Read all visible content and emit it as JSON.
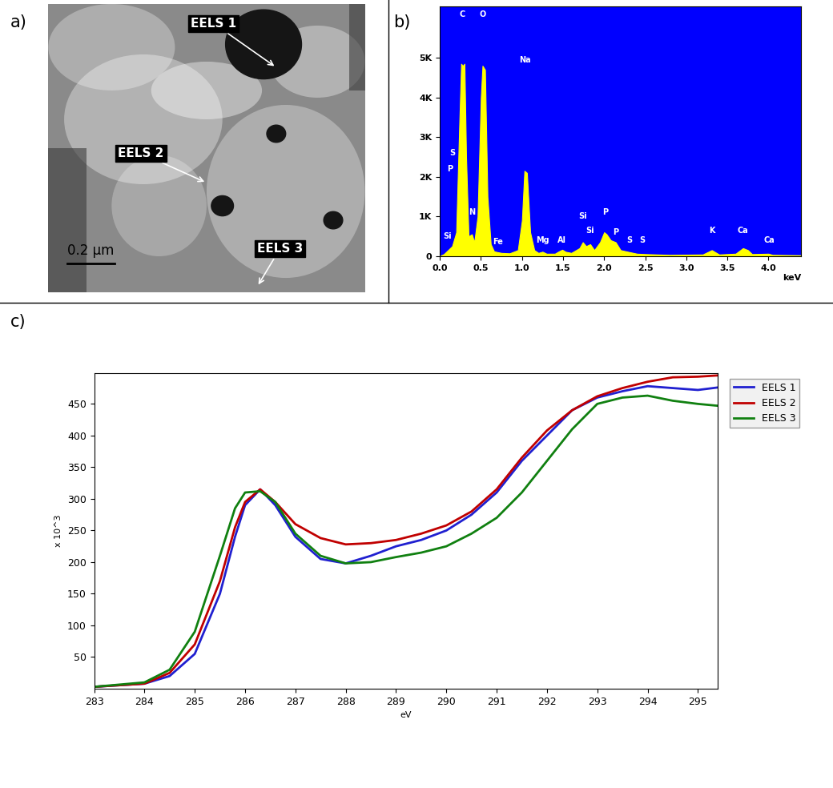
{
  "panel_labels": [
    "a)",
    "b)",
    "c)"
  ],
  "image": {
    "annotations": [
      "EELS 1",
      "EELS 2",
      "EELS 3"
    ],
    "scale_bar": "0.2 µm"
  },
  "chart_data": [
    {
      "type": "area",
      "color": "#ffff00",
      "x_label": "keV",
      "x": [
        0.0,
        0.05,
        0.1,
        0.15,
        0.2,
        0.24,
        0.26,
        0.28,
        0.3,
        0.32,
        0.35,
        0.39,
        0.42,
        0.46,
        0.5,
        0.52,
        0.55,
        0.58,
        0.62,
        0.66,
        0.7,
        0.75,
        0.85,
        0.95,
        1.0,
        1.03,
        1.06,
        1.1,
        1.15,
        1.2,
        1.25,
        1.3,
        1.4,
        1.45,
        1.49,
        1.53,
        1.6,
        1.7,
        1.74,
        1.78,
        1.83,
        1.88,
        1.95,
        2.0,
        2.03,
        2.08,
        2.14,
        2.2,
        2.31,
        2.4,
        2.5,
        2.8,
        3.2,
        3.31,
        3.4,
        3.6,
        3.69,
        3.75,
        3.8,
        4.0,
        4.05,
        4.4
      ],
      "values": [
        0,
        50,
        150,
        250,
        600,
        3500,
        4850,
        4800,
        4850,
        2500,
        500,
        550,
        350,
        1000,
        4000,
        4800,
        4700,
        1500,
        300,
        120,
        100,
        80,
        70,
        150,
        900,
        2150,
        2100,
        600,
        150,
        80,
        110,
        60,
        60,
        120,
        160,
        110,
        80,
        200,
        350,
        250,
        300,
        150,
        350,
        600,
        550,
        400,
        350,
        150,
        100,
        60,
        50,
        30,
        40,
        150,
        40,
        60,
        200,
        150,
        50,
        60,
        30,
        20
      ],
      "xlim": [
        0,
        4.4
      ],
      "xticks": [
        0.0,
        0.5,
        1.0,
        1.5,
        2.0,
        2.5,
        3.0,
        3.5,
        4.0
      ],
      "ylim": [
        0,
        6300
      ],
      "yticks": [
        0,
        {
          "value": 1000,
          "label": "1K"
        },
        {
          "value": 2000,
          "label": "2K"
        },
        {
          "value": 3000,
          "label": "3K"
        },
        {
          "value": 4000,
          "label": "4K"
        },
        {
          "value": 5000,
          "label": "5K"
        }
      ],
      "annotations": [
        {
          "text": "Si",
          "x": 0.092,
          "y": 400
        },
        {
          "text": "P",
          "x": 0.12,
          "y": 2100
        },
        {
          "text": "S",
          "x": 0.149,
          "y": 2500
        },
        {
          "text": "C",
          "x": 0.277,
          "y": 6000
        },
        {
          "text": "N",
          "x": 0.392,
          "y": 1000
        },
        {
          "text": "O",
          "x": 0.525,
          "y": 6000
        },
        {
          "text": "Fe",
          "x": 0.705,
          "y": 250
        },
        {
          "text": "Na",
          "x": 1.041,
          "y": 4850
        },
        {
          "text": "Mg",
          "x": 1.254,
          "y": 300
        },
        {
          "text": "Al",
          "x": 1.487,
          "y": 300
        },
        {
          "text": "Si",
          "x": 1.74,
          "y": 900
        },
        {
          "text": "Si",
          "x": 1.83,
          "y": 550
        },
        {
          "text": "P",
          "x": 2.013,
          "y": 1000
        },
        {
          "text": "P",
          "x": 2.14,
          "y": 500
        },
        {
          "text": "S",
          "x": 2.307,
          "y": 300
        },
        {
          "text": "S",
          "x": 2.46,
          "y": 300
        },
        {
          "text": "K",
          "x": 3.313,
          "y": 550
        },
        {
          "text": "Ca",
          "x": 3.691,
          "y": 550
        },
        {
          "text": "Ca",
          "x": 4.012,
          "y": 300
        }
      ]
    },
    {
      "type": "line",
      "x_label": "eV",
      "y_label": "x 10^3",
      "legend": "right",
      "x": [
        283,
        284,
        284.5,
        285,
        285.5,
        285.8,
        286,
        286.3,
        286.6,
        287,
        287.5,
        288,
        288.5,
        289,
        289.5,
        290,
        290.5,
        291,
        291.5,
        292,
        292.5,
        293,
        293.5,
        294,
        294.5,
        295,
        295.4
      ],
      "series": [
        {
          "name": "EELS 1",
          "color": "#2020d0",
          "values": [
            3,
            8,
            20,
            55,
            150,
            240,
            290,
            315,
            290,
            240,
            205,
            198,
            210,
            225,
            235,
            250,
            275,
            310,
            360,
            400,
            440,
            460,
            470,
            478,
            475,
            472,
            476
          ]
        },
        {
          "name": "EELS 2",
          "color": "#c00000",
          "values": [
            3,
            8,
            25,
            70,
            170,
            255,
            295,
            315,
            295,
            260,
            238,
            228,
            230,
            235,
            245,
            258,
            280,
            315,
            365,
            408,
            440,
            462,
            475,
            485,
            492,
            493,
            495
          ]
        },
        {
          "name": "EELS 3",
          "color": "#108010",
          "values": [
            3,
            10,
            30,
            90,
            210,
            285,
            310,
            312,
            295,
            245,
            210,
            198,
            200,
            208,
            215,
            225,
            245,
            270,
            310,
            360,
            410,
            450,
            460,
            463,
            455,
            450,
            447
          ]
        }
      ],
      "xlim": [
        283,
        295.4
      ],
      "xticks": [
        283,
        284,
        285,
        286,
        287,
        288,
        289,
        290,
        291,
        292,
        293,
        294,
        295
      ],
      "ylim": [
        0,
        498
      ],
      "yticks": [
        50,
        100,
        150,
        200,
        250,
        300,
        350,
        400,
        450
      ]
    }
  ]
}
